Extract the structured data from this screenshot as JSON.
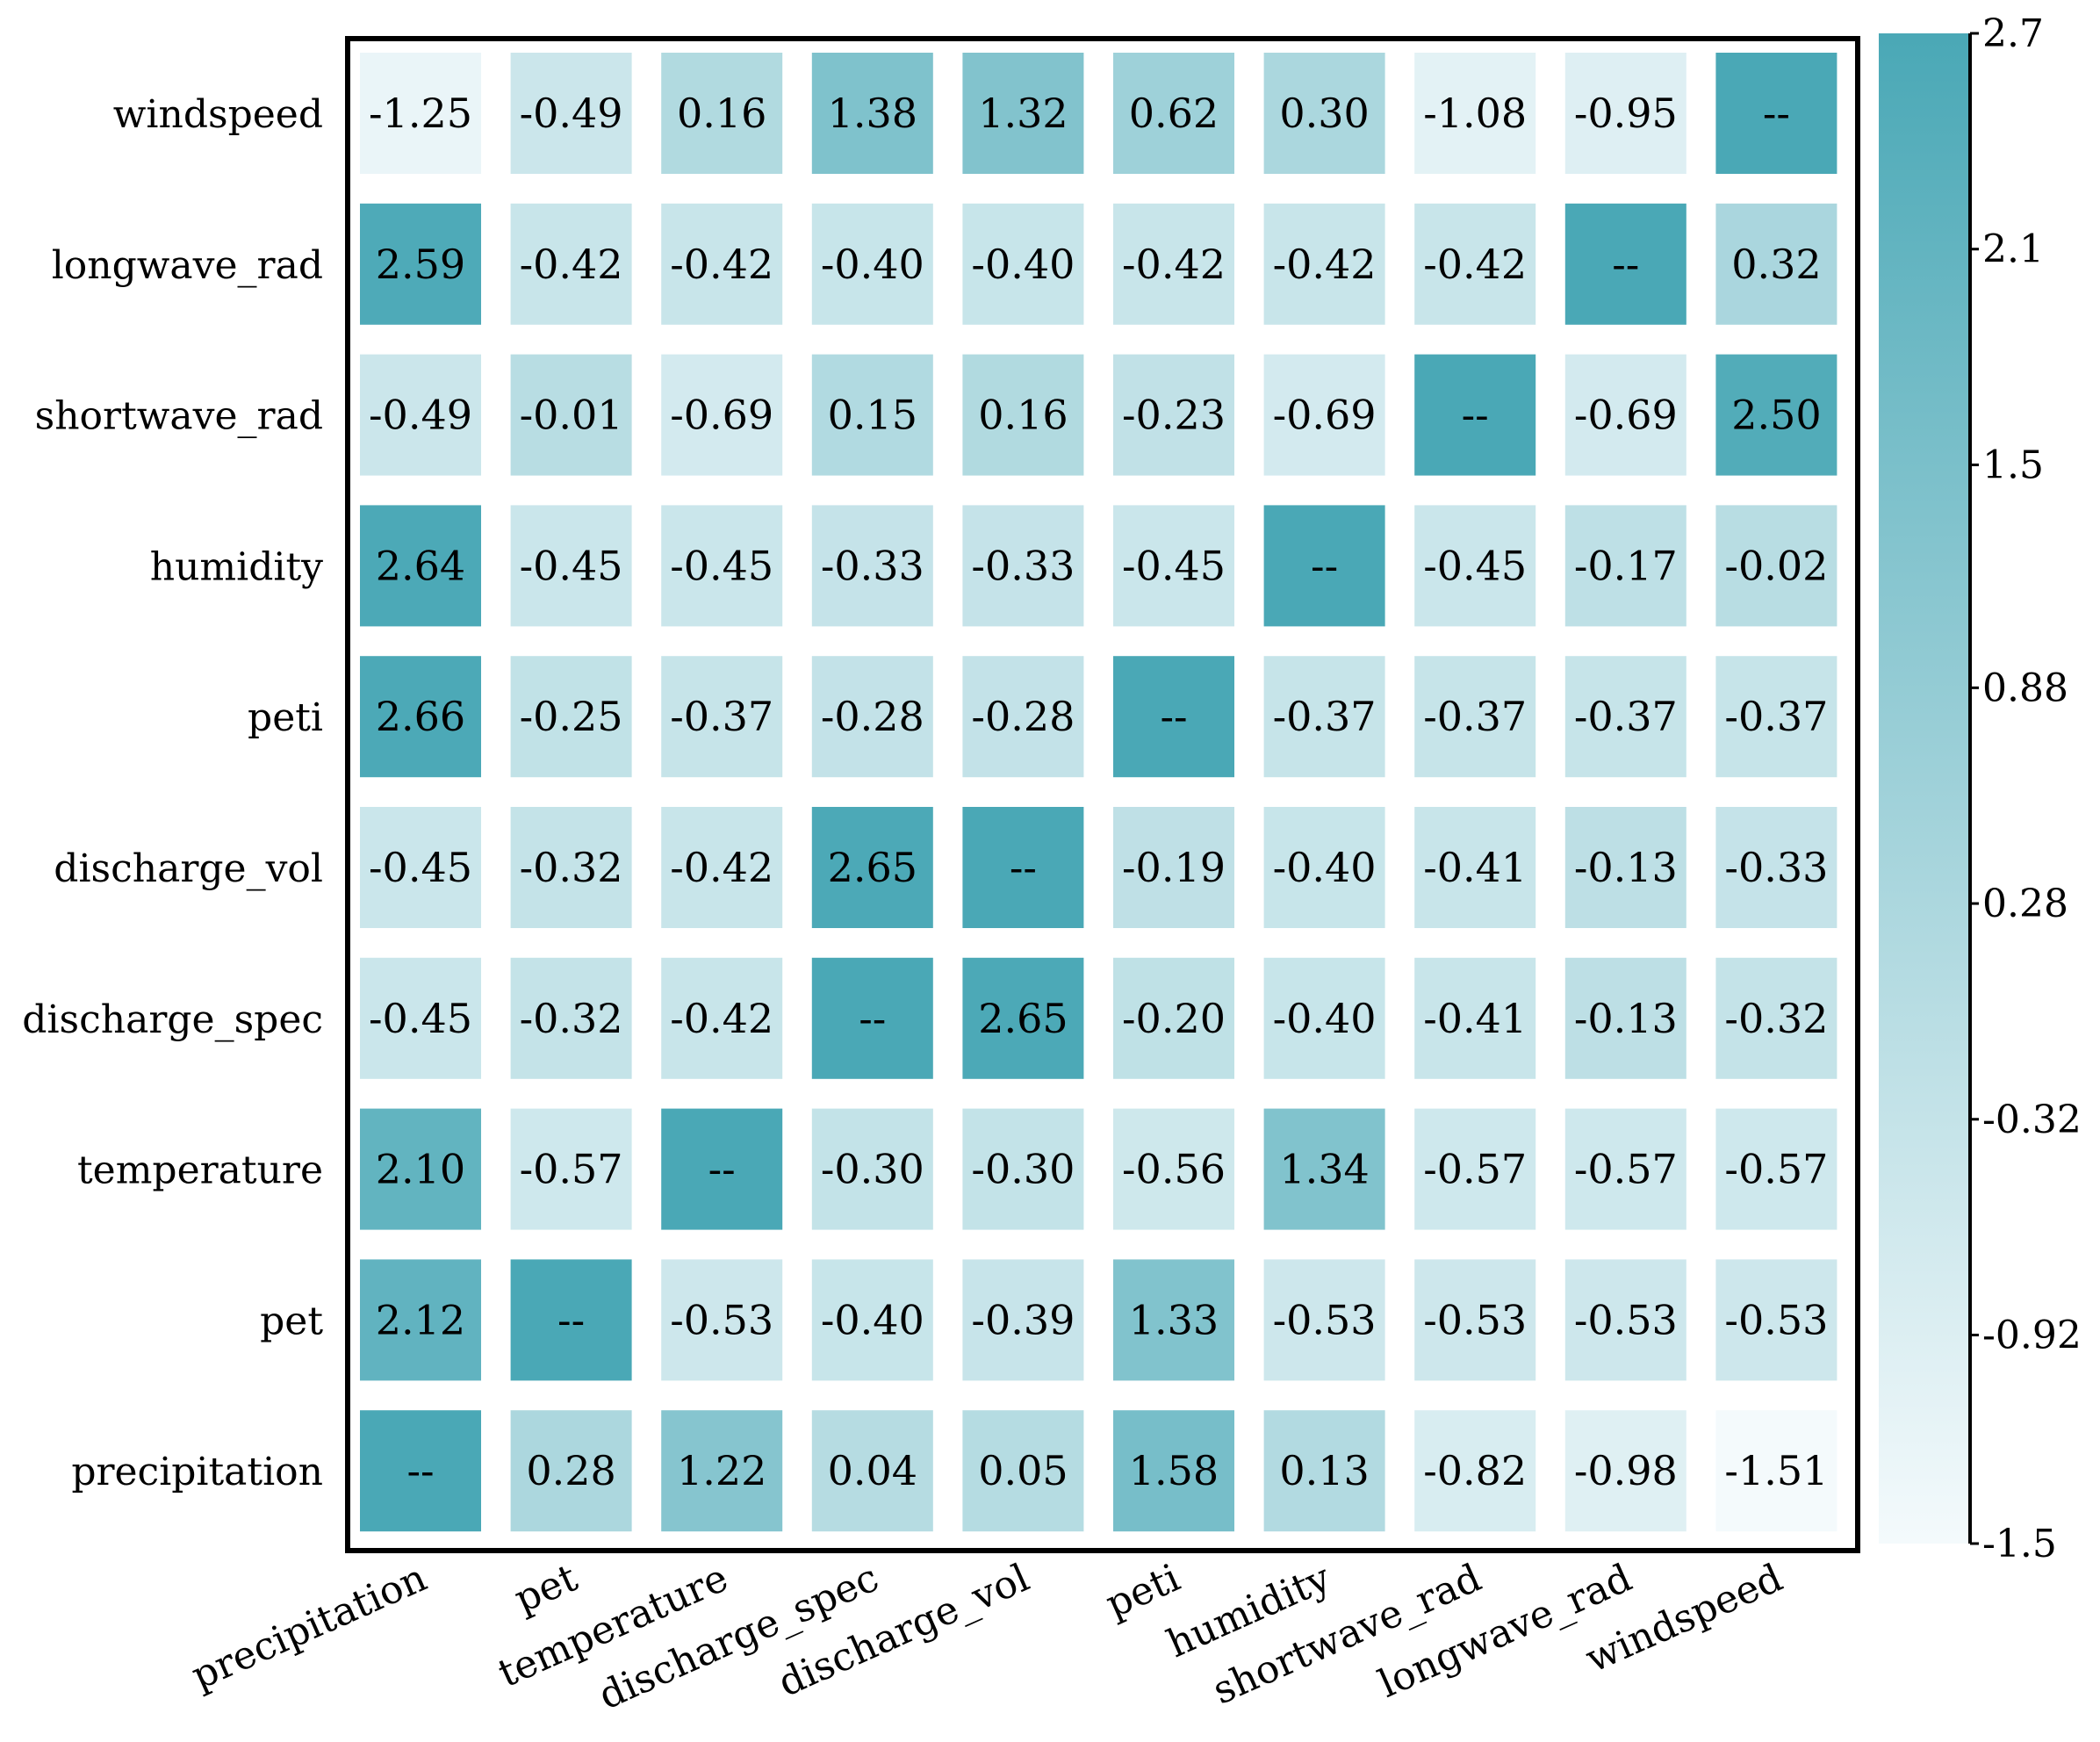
{
  "chart_data": {
    "type": "heatmap",
    "title": "",
    "xlabel": "",
    "ylabel": "",
    "x_categories": [
      "precipitation",
      "pet",
      "temperature",
      "discharge_spec",
      "discharge_vol",
      "peti",
      "humidity",
      "shortwave_rad",
      "longwave_rad",
      "windspeed"
    ],
    "y_categories": [
      "windspeed",
      "longwave_rad",
      "shortwave_rad",
      "humidity",
      "peti",
      "discharge_vol",
      "discharge_spec",
      "temperature",
      "pet",
      "precipitation"
    ],
    "values": [
      [
        -1.25,
        -0.49,
        0.16,
        1.38,
        1.32,
        0.62,
        0.3,
        -1.08,
        -0.95,
        null
      ],
      [
        2.59,
        -0.42,
        -0.42,
        -0.4,
        -0.4,
        -0.42,
        -0.42,
        -0.42,
        null,
        0.32
      ],
      [
        -0.49,
        -0.01,
        -0.69,
        0.15,
        0.16,
        -0.23,
        -0.69,
        null,
        -0.69,
        2.5
      ],
      [
        2.64,
        -0.45,
        -0.45,
        -0.33,
        -0.33,
        -0.45,
        null,
        -0.45,
        -0.17,
        -0.02
      ],
      [
        2.66,
        -0.25,
        -0.37,
        -0.28,
        -0.28,
        null,
        -0.37,
        -0.37,
        -0.37,
        -0.37
      ],
      [
        -0.45,
        -0.32,
        -0.42,
        2.65,
        null,
        -0.19,
        -0.4,
        -0.41,
        -0.13,
        -0.33
      ],
      [
        -0.45,
        -0.32,
        -0.42,
        null,
        2.65,
        -0.2,
        -0.4,
        -0.41,
        -0.13,
        -0.32
      ],
      [
        2.1,
        -0.57,
        null,
        -0.3,
        -0.3,
        -0.56,
        1.34,
        -0.57,
        -0.57,
        -0.57
      ],
      [
        2.12,
        null,
        -0.53,
        -0.4,
        -0.39,
        1.33,
        -0.53,
        -0.53,
        -0.53,
        -0.53
      ],
      [
        null,
        0.28,
        1.22,
        0.04,
        0.05,
        1.58,
        0.13,
        -0.82,
        -0.98,
        -1.51
      ]
    ],
    "missing_label": "--",
    "color_range": [
      -1.5,
      2.7
    ],
    "colorbar_ticks": [
      "2.7",
      "2.1",
      "1.5",
      "0.88",
      "0.28",
      "-0.32",
      "-0.92",
      "-1.5"
    ],
    "colorbar_tick_values": [
      2.7,
      2.1,
      1.5,
      0.88,
      0.28,
      -0.32,
      -0.92,
      -1.5
    ],
    "colormap": {
      "low": "#f4fafc",
      "high": "#4aa8b6",
      "missing": "#4aa8b6"
    },
    "grid": false,
    "legend": "colorbar-right"
  }
}
